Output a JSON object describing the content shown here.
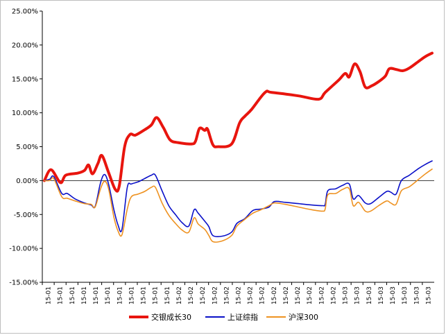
{
  "chart_data": {
    "type": "line",
    "title": "",
    "xlabel": "",
    "ylabel": "",
    "ylim": [
      -15,
      25
    ],
    "y_ticks": [
      -15,
      -10,
      -5,
      0,
      5,
      10,
      15,
      20,
      25
    ],
    "y_tick_labels": [
      "-15.00%",
      "-10.00%",
      "-5.00%",
      "0.00%",
      "5.00%",
      "10.00%",
      "15.00%",
      "20.00%",
      "25.00%"
    ],
    "x_tick_labels": [
      "15-01",
      "15-01",
      "15-01",
      "15-01",
      "15-01",
      "15-01",
      "15-01",
      "15-01",
      "15-01",
      "15-01",
      "15-01",
      "15-02",
      "15-02",
      "15-02",
      "15-02",
      "15-02",
      "15-02",
      "15-02",
      "15-02",
      "15-02",
      "15-02",
      "15-02",
      "15-02",
      "15-02",
      "15-02",
      "15-03",
      "15-03",
      "15-03",
      "15-03",
      "15-03",
      "15-03",
      "15-03",
      "15-03"
    ],
    "grid": false,
    "legend_position": "bottom",
    "series": [
      {
        "name": "交银成长30",
        "color": "#e8150e",
        "width": 4,
        "points": [
          [
            0,
            0
          ],
          [
            0.5,
            1.6
          ],
          [
            1.2,
            -0.3
          ],
          [
            1.6,
            0.8
          ],
          [
            2.5,
            1.1
          ],
          [
            3.0,
            1.5
          ],
          [
            3.3,
            2.3
          ],
          [
            3.6,
            1.0
          ],
          [
            4.0,
            2.5
          ],
          [
            4.3,
            3.7
          ],
          [
            4.8,
            1.2
          ],
          [
            5.3,
            -1.3
          ],
          [
            5.6,
            -0.8
          ],
          [
            6.0,
            5.0
          ],
          [
            6.4,
            6.8
          ],
          [
            6.8,
            6.7
          ],
          [
            7.5,
            7.5
          ],
          [
            8.0,
            8.2
          ],
          [
            8.4,
            9.3
          ],
          [
            8.9,
            7.8
          ],
          [
            9.4,
            6.0
          ],
          [
            10.0,
            5.6
          ],
          [
            11.0,
            5.4
          ],
          [
            11.3,
            5.8
          ],
          [
            11.6,
            7.7
          ],
          [
            12.0,
            7.4
          ],
          [
            12.2,
            7.6
          ],
          [
            12.6,
            5.3
          ],
          [
            13.0,
            5.0
          ],
          [
            14.0,
            5.4
          ],
          [
            14.6,
            8.5
          ],
          [
            15.0,
            9.5
          ],
          [
            15.5,
            10.5
          ],
          [
            16.5,
            13.0
          ],
          [
            17.0,
            13.0
          ],
          [
            19.0,
            12.5
          ],
          [
            20.5,
            12.0
          ],
          [
            21.0,
            13.0
          ],
          [
            22.0,
            14.8
          ],
          [
            22.5,
            15.8
          ],
          [
            22.8,
            15.3
          ],
          [
            23.2,
            17.2
          ],
          [
            23.6,
            16.1
          ],
          [
            24.0,
            13.8
          ],
          [
            24.5,
            14.0
          ],
          [
            25.0,
            14.6
          ],
          [
            25.5,
            15.4
          ],
          [
            25.8,
            16.5
          ],
          [
            26.3,
            16.4
          ],
          [
            26.8,
            16.2
          ],
          [
            27.3,
            16.6
          ],
          [
            28.0,
            17.6
          ],
          [
            28.5,
            18.3
          ],
          [
            29.0,
            18.8
          ]
        ]
      },
      {
        "name": "上证综指",
        "color": "#0a10c8",
        "width": 1.6,
        "points": [
          [
            0,
            0
          ],
          [
            0.4,
            0.2
          ],
          [
            0.7,
            0.6
          ],
          [
            1.3,
            -1.9
          ],
          [
            1.7,
            -1.9
          ],
          [
            2.3,
            -2.7
          ],
          [
            3.0,
            -3.3
          ],
          [
            3.5,
            -3.6
          ],
          [
            3.8,
            -3.8
          ],
          [
            4.2,
            -0.3
          ],
          [
            4.5,
            0.9
          ],
          [
            4.8,
            -0.5
          ],
          [
            5.2,
            -4.3
          ],
          [
            5.5,
            -6.5
          ],
          [
            5.8,
            -7.2
          ],
          [
            6.2,
            -1.0
          ],
          [
            6.5,
            -0.5
          ],
          [
            7.0,
            -0.2
          ],
          [
            7.5,
            0.3
          ],
          [
            8.0,
            0.8
          ],
          [
            8.3,
            0.8
          ],
          [
            8.8,
            -1.5
          ],
          [
            9.3,
            -3.7
          ],
          [
            9.8,
            -5.0
          ],
          [
            10.3,
            -6.2
          ],
          [
            10.8,
            -6.7
          ],
          [
            11.2,
            -4.3
          ],
          [
            11.5,
            -4.8
          ],
          [
            12.0,
            -6.0
          ],
          [
            12.3,
            -6.8
          ],
          [
            12.6,
            -8.1
          ],
          [
            13.3,
            -8.2
          ],
          [
            14.0,
            -7.6
          ],
          [
            14.4,
            -6.3
          ],
          [
            15.0,
            -5.6
          ],
          [
            15.6,
            -4.4
          ],
          [
            16.2,
            -4.2
          ],
          [
            16.8,
            -3.9
          ],
          [
            17.2,
            -3.1
          ],
          [
            18.0,
            -3.2
          ],
          [
            19.0,
            -3.4
          ],
          [
            20.0,
            -3.6
          ],
          [
            20.8,
            -3.7
          ],
          [
            21.0,
            -3.5
          ],
          [
            21.2,
            -1.5
          ],
          [
            21.8,
            -1.2
          ],
          [
            22.3,
            -0.7
          ],
          [
            22.8,
            -0.5
          ],
          [
            23.1,
            -2.7
          ],
          [
            23.5,
            -2.2
          ],
          [
            24.0,
            -3.3
          ],
          [
            24.4,
            -3.4
          ],
          [
            25.0,
            -2.5
          ],
          [
            25.6,
            -1.6
          ],
          [
            25.9,
            -1.7
          ],
          [
            26.3,
            -2.0
          ],
          [
            26.7,
            0.0
          ],
          [
            27.3,
            0.8
          ],
          [
            28.0,
            1.8
          ],
          [
            28.5,
            2.4
          ],
          [
            29.0,
            2.9
          ]
        ]
      },
      {
        "name": "沪深300",
        "color": "#ee9221",
        "width": 1.6,
        "points": [
          [
            0,
            0
          ],
          [
            0.4,
            0.0
          ],
          [
            0.7,
            0.3
          ],
          [
            1.3,
            -2.4
          ],
          [
            1.7,
            -2.6
          ],
          [
            2.3,
            -3.0
          ],
          [
            3.0,
            -3.4
          ],
          [
            3.5,
            -3.5
          ],
          [
            3.8,
            -3.9
          ],
          [
            4.2,
            -1.2
          ],
          [
            4.5,
            -0.1
          ],
          [
            4.8,
            -1.2
          ],
          [
            5.2,
            -5.4
          ],
          [
            5.5,
            -7.4
          ],
          [
            5.8,
            -8.0
          ],
          [
            6.2,
            -4.2
          ],
          [
            6.5,
            -2.4
          ],
          [
            7.0,
            -2.0
          ],
          [
            7.5,
            -1.6
          ],
          [
            8.0,
            -1.0
          ],
          [
            8.3,
            -1.0
          ],
          [
            8.8,
            -3.3
          ],
          [
            9.3,
            -5.1
          ],
          [
            9.8,
            -6.3
          ],
          [
            10.3,
            -7.3
          ],
          [
            10.8,
            -7.6
          ],
          [
            11.2,
            -5.5
          ],
          [
            11.5,
            -6.4
          ],
          [
            12.0,
            -7.2
          ],
          [
            12.3,
            -8.1
          ],
          [
            12.6,
            -9.0
          ],
          [
            13.3,
            -8.9
          ],
          [
            14.0,
            -8.1
          ],
          [
            14.4,
            -6.7
          ],
          [
            15.0,
            -5.7
          ],
          [
            15.6,
            -4.8
          ],
          [
            16.2,
            -4.3
          ],
          [
            16.8,
            -3.7
          ],
          [
            17.2,
            -3.3
          ],
          [
            18.0,
            -3.5
          ],
          [
            19.0,
            -3.9
          ],
          [
            20.0,
            -4.3
          ],
          [
            20.8,
            -4.5
          ],
          [
            21.0,
            -4.2
          ],
          [
            21.2,
            -2.1
          ],
          [
            21.8,
            -1.9
          ],
          [
            22.3,
            -1.3
          ],
          [
            22.8,
            -1.2
          ],
          [
            23.1,
            -3.7
          ],
          [
            23.5,
            -3.2
          ],
          [
            24.0,
            -4.5
          ],
          [
            24.4,
            -4.5
          ],
          [
            25.0,
            -3.7
          ],
          [
            25.6,
            -3.0
          ],
          [
            25.9,
            -3.3
          ],
          [
            26.3,
            -3.5
          ],
          [
            26.7,
            -1.5
          ],
          [
            27.3,
            -0.9
          ],
          [
            28.0,
            0.2
          ],
          [
            28.5,
            1.0
          ],
          [
            29.0,
            1.7
          ]
        ]
      }
    ]
  }
}
